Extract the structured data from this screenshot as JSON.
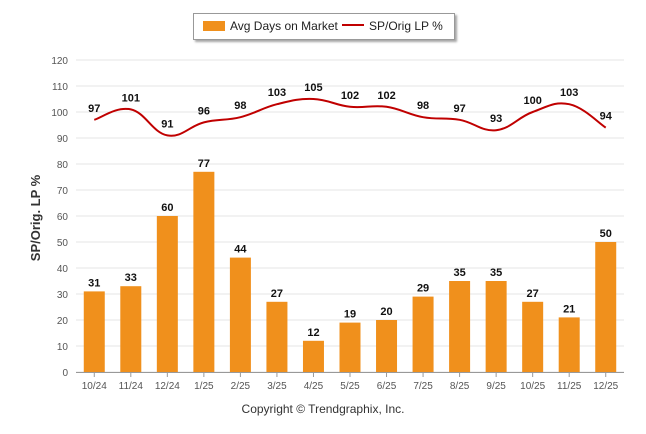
{
  "chart_data": {
    "type": "bar+line",
    "categories": [
      "10/24",
      "11/24",
      "12/24",
      "1/25",
      "2/25",
      "3/25",
      "4/25",
      "5/25",
      "6/25",
      "7/25",
      "8/25",
      "9/25",
      "10/25",
      "11/25",
      "12/25"
    ],
    "series": [
      {
        "name": "Avg Days on Market",
        "type": "bar",
        "color": "#f0901c",
        "values": [
          31,
          33,
          60,
          77,
          44,
          27,
          12,
          19,
          20,
          29,
          35,
          35,
          27,
          21,
          50
        ]
      },
      {
        "name": "SP/Orig LP %",
        "type": "line",
        "color": "#c00000",
        "values": [
          97,
          101,
          91,
          96,
          98,
          103,
          105,
          102,
          102,
          98,
          97,
          93,
          100,
          103,
          94
        ]
      }
    ],
    "ylabel": "SP/Orig. LP %",
    "xlabel": "",
    "ylim": [
      0,
      120
    ],
    "yticks": [
      0,
      10,
      20,
      30,
      40,
      50,
      60,
      70,
      80,
      90,
      100,
      110,
      120
    ],
    "legend_position": "top-center",
    "grid": true
  },
  "footer": {
    "copyright": "Copyright © Trendgraphix, Inc."
  }
}
